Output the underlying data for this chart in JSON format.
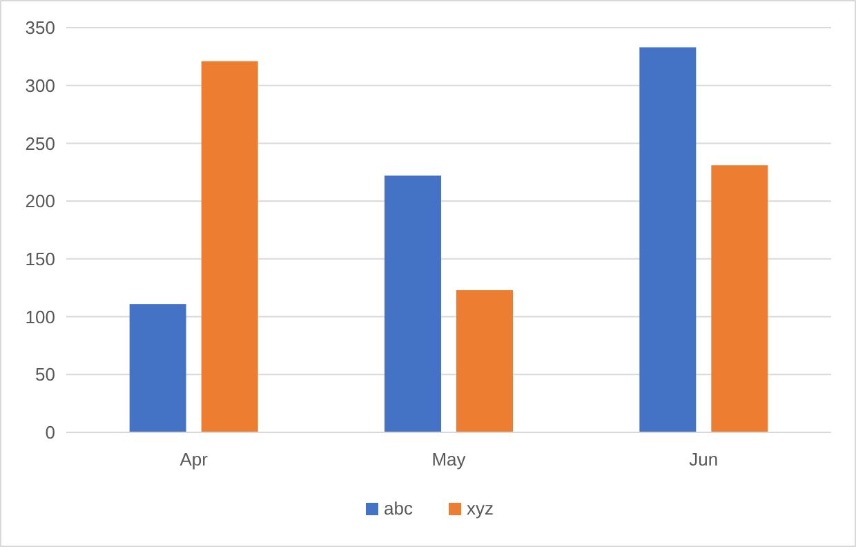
{
  "chart_data": {
    "type": "bar",
    "categories": [
      "Apr",
      "May",
      "Jun"
    ],
    "series": [
      {
        "name": "abc",
        "color": "#4472c4",
        "values": [
          111,
          222,
          333
        ]
      },
      {
        "name": "xyz",
        "color": "#ed7d31",
        "values": [
          321,
          123,
          231
        ]
      }
    ],
    "ylim": [
      0,
      350
    ],
    "yticks": [
      0,
      50,
      100,
      150,
      200,
      250,
      300,
      350
    ],
    "grid": "y",
    "legend": "bottom"
  }
}
